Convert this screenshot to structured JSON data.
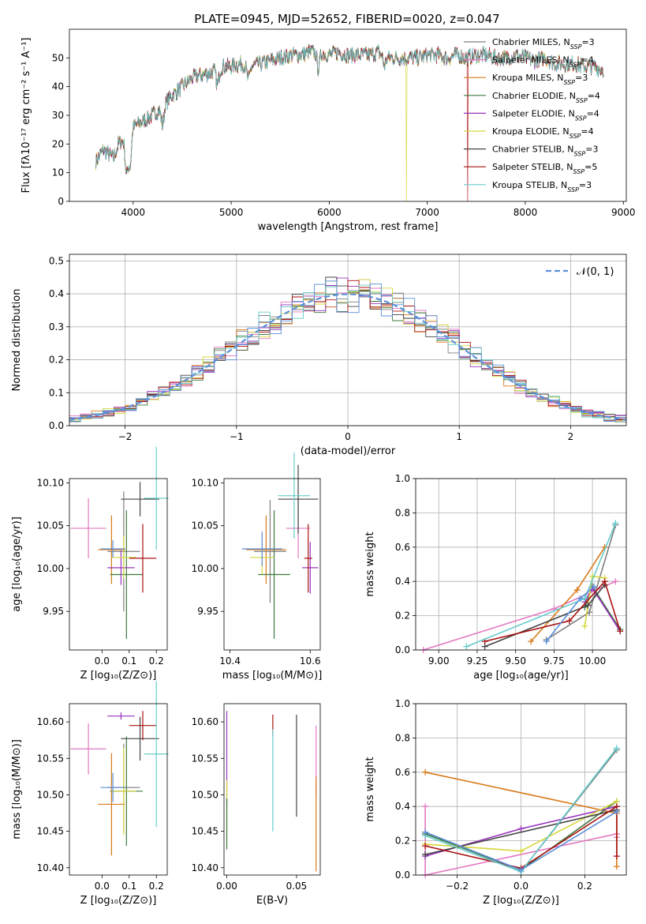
{
  "title": "PLATE=0945, MJD=52652, FIBERID=0020, z=0.047",
  "colors": [
    "#7f7f7f",
    "#e377c2",
    "#d97a1c",
    "#3d7a3d",
    "#9933bb",
    "#d6d63a",
    "#444444",
    "#aa1111",
    "#66cccc",
    "#5b8fd9"
  ],
  "chart_data": [
    {
      "type": "line",
      "id": "spectrum",
      "xlabel": "wavelength [Angstrom, rest frame]",
      "ylabel": "Flux [fλ10⁻¹⁷ erg cm⁻² s⁻¹ A⁻¹]",
      "xlim": [
        3350,
        9030
      ],
      "ylim": [
        0,
        60
      ],
      "xticks": [
        4000,
        5000,
        6000,
        7000,
        8000,
        9000
      ],
      "yticks": [
        0,
        10,
        20,
        30,
        40,
        50
      ],
      "legend_position": "top-right",
      "series": [
        {
          "name": "Chabrier MILES, N",
          "sub": "SSP",
          "suffix": "=3"
        },
        {
          "name": "Salpeter MILES, N",
          "sub": "SSP",
          "suffix": "=4"
        },
        {
          "name": "Kroupa MILES, N",
          "sub": "SSP",
          "suffix": "=3"
        },
        {
          "name": "Chabrier ELODIE, N",
          "sub": "SSP",
          "suffix": "=4"
        },
        {
          "name": "Salpeter ELODIE, N",
          "sub": "SSP",
          "suffix": "=4"
        },
        {
          "name": "Kroupa ELODIE, N",
          "sub": "SSP",
          "suffix": "=4"
        },
        {
          "name": "Chabrier STELIB, N",
          "sub": "SSP",
          "suffix": "=3"
        },
        {
          "name": "Salpeter STELIB, N",
          "sub": "SSP",
          "suffix": "=5"
        },
        {
          "name": "Kroupa STELIB, N",
          "sub": "SSP",
          "suffix": "=3"
        }
      ],
      "continuum": [
        [
          3620,
          14
        ],
        [
          3700,
          18
        ],
        [
          3800,
          15
        ],
        [
          3850,
          20
        ],
        [
          3920,
          22
        ],
        [
          4000,
          26
        ],
        [
          4100,
          28
        ],
        [
          4200,
          30
        ],
        [
          4300,
          33
        ],
        [
          4400,
          37
        ],
        [
          4500,
          40
        ],
        [
          4600,
          43
        ],
        [
          4700,
          44
        ],
        [
          4800,
          45
        ],
        [
          4900,
          47
        ],
        [
          5000,
          47
        ],
        [
          5100,
          48
        ],
        [
          5200,
          47
        ],
        [
          5300,
          48
        ],
        [
          5400,
          49
        ],
        [
          5500,
          50
        ],
        [
          5600,
          51
        ],
        [
          5700,
          51
        ],
        [
          5800,
          52
        ],
        [
          5900,
          52
        ],
        [
          6000,
          51
        ],
        [
          6100,
          52
        ],
        [
          6200,
          51
        ],
        [
          6300,
          51
        ],
        [
          6400,
          51
        ],
        [
          6500,
          52
        ],
        [
          6600,
          50
        ],
        [
          6700,
          50
        ],
        [
          6800,
          50
        ],
        [
          6900,
          50
        ],
        [
          7000,
          51
        ],
        [
          7100,
          51
        ],
        [
          7200,
          50
        ],
        [
          7300,
          51
        ],
        [
          7400,
          50
        ],
        [
          7500,
          51
        ],
        [
          7600,
          51
        ],
        [
          7700,
          50
        ],
        [
          7800,
          50
        ],
        [
          7900,
          51
        ],
        [
          8000,
          50
        ],
        [
          8100,
          49
        ],
        [
          8200,
          50
        ],
        [
          8300,
          48
        ],
        [
          8400,
          48
        ],
        [
          8500,
          48
        ],
        [
          8600,
          47
        ],
        [
          8700,
          47
        ],
        [
          8800,
          46
        ]
      ],
      "dips": [
        [
          3933,
          4
        ],
        [
          3968,
          8
        ],
        [
          4300,
          24
        ],
        [
          4861,
          38
        ],
        [
          5175,
          40
        ],
        [
          5890,
          44
        ],
        [
          6563,
          46
        ]
      ],
      "dropouts": [
        {
          "x": 6790,
          "series": 5
        },
        {
          "x": 7410,
          "series": 7
        }
      ]
    },
    {
      "type": "histogram",
      "id": "residuals",
      "xlabel": "(data-model)/error",
      "ylabel": "Normed distribution",
      "xlim": [
        -2.5,
        2.5
      ],
      "ylim": [
        0,
        0.52
      ],
      "xticks": [
        -2,
        -1,
        0,
        1,
        2
      ],
      "yticks": [
        0,
        0.1,
        0.2,
        0.3,
        0.4,
        0.5
      ],
      "bin_width": 0.1,
      "grid": true,
      "reference_curve": "𝒩(0, 1)",
      "legend_position": "top-right"
    },
    {
      "type": "scatter",
      "id": "age-vs-Z",
      "xlabel": "Z [log₁₀(Z/Z⊙)]",
      "ylabel": "age  [log₁₀(age/yr)]",
      "xlim": [
        -0.12,
        0.24
      ],
      "ylim": [
        9.905,
        10.105
      ],
      "xticks": [
        0.0,
        0.1,
        0.2
      ],
      "yticks": [
        9.95,
        10.0,
        10.05,
        10.1
      ],
      "points": [
        {
          "s": 0,
          "x": 0.08,
          "y": 10.02,
          "ex": 0.06,
          "ey": 0.07
        },
        {
          "s": 1,
          "x": -0.05,
          "y": 10.047,
          "ex": 0.065,
          "ey": 0.035
        },
        {
          "s": 2,
          "x": 0.035,
          "y": 10.022,
          "ex": 0.05,
          "ey": 0.04
        },
        {
          "s": 3,
          "x": 0.09,
          "y": 9.993,
          "ex": 0.06,
          "ey": 0.075
        },
        {
          "s": 4,
          "x": 0.07,
          "y": 10.001,
          "ex": 0.05,
          "ey": 0.02
        },
        {
          "s": 5,
          "x": 0.08,
          "y": 10.013,
          "ex": 0.045,
          "ey": 0.025
        },
        {
          "s": 6,
          "x": 0.14,
          "y": 10.081,
          "ex": 0.07,
          "ey": 0.02
        },
        {
          "s": 7,
          "x": 0.15,
          "y": 10.012,
          "ex": 0.05,
          "ey": 0.04
        },
        {
          "s": 8,
          "x": 0.2,
          "y": 10.082,
          "ex": 0.045,
          "ey": 0.06
        },
        {
          "s": 9,
          "x": 0.04,
          "y": 10.023,
          "ex": 0.045,
          "ey": 0.01
        }
      ]
    },
    {
      "type": "scatter",
      "id": "age-vs-mass",
      "xlabel": "mass [log₁₀(M/M⊙)]",
      "ylabel": "",
      "xlim": [
        10.385,
        10.625
      ],
      "ylim": [
        9.905,
        10.105
      ],
      "xticks": [
        10.4,
        10.6
      ],
      "yticks": [
        9.95,
        10.0,
        10.05,
        10.1
      ],
      "points": [
        {
          "s": 0,
          "x": 10.5,
          "y": 10.02,
          "ex": 0.04,
          "ey": 0.06
        },
        {
          "s": 1,
          "x": 10.57,
          "y": 10.047,
          "ex": 0.03,
          "ey": 0.035
        },
        {
          "s": 2,
          "x": 10.49,
          "y": 10.022,
          "ex": 0.05,
          "ey": 0.04
        },
        {
          "s": 3,
          "x": 10.51,
          "y": 9.993,
          "ex": 0.04,
          "ey": 0.075
        },
        {
          "s": 4,
          "x": 10.6,
          "y": 10.001,
          "ex": 0.02,
          "ey": 0.03
        },
        {
          "s": 5,
          "x": 10.48,
          "y": 10.013,
          "ex": 0.03,
          "ey": 0.02
        },
        {
          "s": 6,
          "x": 10.57,
          "y": 10.081,
          "ex": 0.05,
          "ey": 0.04
        },
        {
          "s": 7,
          "x": 10.595,
          "y": 10.012,
          "ex": 0.01,
          "ey": 0.04
        },
        {
          "s": 8,
          "x": 10.56,
          "y": 10.085,
          "ex": 0.04,
          "ey": 0.05
        },
        {
          "s": 9,
          "x": 10.48,
          "y": 10.023,
          "ex": 0.05,
          "ey": 0.02
        }
      ]
    },
    {
      "type": "line",
      "id": "massweight-vs-age",
      "xlabel": "age  [log₁₀(age/yr)]",
      "ylabel": "mass weight",
      "xlim": [
        8.85,
        10.22
      ],
      "ylim": [
        0,
        1
      ],
      "xticks": [
        9.0,
        9.25,
        9.5,
        9.75,
        10.0
      ],
      "yticks": [
        0.0,
        0.2,
        0.4,
        0.6,
        0.8,
        1.0
      ],
      "grid": true,
      "series": [
        {
          "s": 0,
          "x": [
            9.7,
            9.98,
            10.15
          ],
          "y": [
            0.06,
            0.22,
            0.73
          ]
        },
        {
          "s": 1,
          "x": [
            8.9,
            9.75,
            10.15
          ],
          "y": [
            0.0,
            0.24,
            0.4
          ]
        },
        {
          "s": 2,
          "x": [
            9.6,
            9.9,
            10.08
          ],
          "y": [
            0.05,
            0.35,
            0.6
          ]
        },
        {
          "s": 3,
          "x": [
            9.95,
            10.0,
            10.18
          ],
          "y": [
            0.25,
            0.37,
            0.12
          ]
        },
        {
          "s": 4,
          "x": [
            9.95,
            10.0,
            10.18
          ],
          "y": [
            0.28,
            0.36,
            0.11
          ]
        },
        {
          "s": 5,
          "x": [
            9.95,
            10.0,
            10.08
          ],
          "y": [
            0.14,
            0.43,
            0.42
          ]
        },
        {
          "s": 6,
          "x": [
            9.3,
            9.97,
            10.08
          ],
          "y": [
            0.02,
            0.26,
            0.38
          ]
        },
        {
          "s": 7,
          "x": [
            9.3,
            9.85,
            10.08,
            10.18
          ],
          "y": [
            0.05,
            0.17,
            0.4,
            0.11
          ]
        },
        {
          "s": 8,
          "x": [
            9.18,
            9.95,
            10.15
          ],
          "y": [
            0.02,
            0.3,
            0.74
          ]
        },
        {
          "s": 9,
          "x": [
            9.7,
            9.92,
            10.01
          ],
          "y": [
            0.05,
            0.3,
            0.37
          ]
        }
      ]
    },
    {
      "type": "scatter",
      "id": "mass-vs-Z",
      "xlabel": "Z [log₁₀(Z/Z⊙)]",
      "ylabel": "mass [log₁₀(M/M⊙)]",
      "xlim": [
        -0.12,
        0.24
      ],
      "ylim": [
        10.39,
        10.625
      ],
      "xticks": [
        0.0,
        0.1,
        0.2
      ],
      "yticks": [
        10.4,
        10.45,
        10.5,
        10.55,
        10.6
      ],
      "points": [
        {
          "s": 0,
          "x": 0.08,
          "y": 10.51,
          "ex": 0.06,
          "ey": 0.06
        },
        {
          "s": 1,
          "x": -0.05,
          "y": 10.563,
          "ex": 0.065,
          "ey": 0.035
        },
        {
          "s": 2,
          "x": 0.035,
          "y": 10.487,
          "ex": 0.05,
          "ey": 0.07
        },
        {
          "s": 3,
          "x": 0.09,
          "y": 10.505,
          "ex": 0.06,
          "ey": 0.075
        },
        {
          "s": 4,
          "x": 0.07,
          "y": 10.608,
          "ex": 0.05,
          "ey": 0.005
        },
        {
          "s": 5,
          "x": 0.08,
          "y": 10.505,
          "ex": 0.045,
          "ey": 0.06
        },
        {
          "s": 6,
          "x": 0.14,
          "y": 10.577,
          "ex": 0.07,
          "ey": 0.03
        },
        {
          "s": 7,
          "x": 0.15,
          "y": 10.595,
          "ex": 0.05,
          "ey": 0.02
        },
        {
          "s": 8,
          "x": 0.2,
          "y": 10.556,
          "ex": 0.045,
          "ey": 0.1
        },
        {
          "s": 9,
          "x": 0.04,
          "y": 10.51,
          "ex": 0.045,
          "ey": 0.02
        }
      ]
    },
    {
      "type": "errorbar",
      "id": "mass-vs-ebv",
      "xlabel": "E(B-V)",
      "ylabel": "",
      "xlim": [
        -0.002,
        0.067
      ],
      "ylim": [
        10.39,
        10.625
      ],
      "xticks": [
        0.0,
        0.05
      ],
      "yticks": [
        10.4,
        10.45,
        10.5,
        10.55,
        10.6
      ],
      "points": [
        {
          "s": 4,
          "x": 0.0,
          "y": 10.55,
          "ey": 0.065
        },
        {
          "s": 5,
          "x": 0.0,
          "y": 10.48,
          "ey": 0.04
        },
        {
          "s": 3,
          "x": 0.0,
          "y": 10.46,
          "ey": 0.035
        },
        {
          "s": 7,
          "x": 0.033,
          "y": 10.595,
          "ey": 0.015
        },
        {
          "s": 8,
          "x": 0.033,
          "y": 10.52,
          "ey": 0.07
        },
        {
          "s": 6,
          "x": 0.05,
          "y": 10.54,
          "ey": 0.07
        },
        {
          "s": 1,
          "x": 0.064,
          "y": 10.545,
          "ey": 0.05
        },
        {
          "s": 2,
          "x": 0.064,
          "y": 10.46,
          "ey": 0.065
        }
      ]
    },
    {
      "type": "line",
      "id": "massweight-vs-Z",
      "xlabel": "Z [log₁₀(Z/Z⊙)]",
      "ylabel": "mass weight",
      "xlim": [
        -0.33,
        0.33
      ],
      "ylim": [
        0,
        1
      ],
      "xticks": [
        -0.2,
        0.0,
        0.2
      ],
      "yticks": [
        0.0,
        0.2,
        0.4,
        0.6,
        0.8,
        1.0
      ],
      "grid": true,
      "series": [
        {
          "s": 0,
          "x": [
            -0.3,
            0.0,
            0.3
          ],
          "y": [
            0.25,
            0.02,
            0.73
          ]
        },
        {
          "s": 1,
          "x": [
            -0.3,
            -0.3,
            0.3,
            0.3
          ],
          "y": [
            0.4,
            0.0,
            0.24,
            0.22
          ]
        },
        {
          "s": 2,
          "x": [
            -0.3,
            0.3,
            0.3
          ],
          "y": [
            0.6,
            0.36,
            0.05
          ]
        },
        {
          "s": 3,
          "x": [
            -0.3,
            0.0,
            0.3
          ],
          "y": [
            0.24,
            0.03,
            0.43
          ]
        },
        {
          "s": 4,
          "x": [
            -0.3,
            0.0,
            0.3
          ],
          "y": [
            0.11,
            0.27,
            0.4
          ]
        },
        {
          "s": 5,
          "x": [
            -0.3,
            0.0,
            0.3
          ],
          "y": [
            0.18,
            0.14,
            0.43
          ]
        },
        {
          "s": 6,
          "x": [
            -0.3,
            0.3
          ],
          "y": [
            0.12,
            0.38
          ]
        },
        {
          "s": 7,
          "x": [
            -0.3,
            0.0,
            0.3,
            0.3
          ],
          "y": [
            0.17,
            0.04,
            0.4,
            0.11
          ]
        },
        {
          "s": 8,
          "x": [
            -0.3,
            0.0,
            0.3
          ],
          "y": [
            0.23,
            0.02,
            0.74
          ]
        },
        {
          "s": 9,
          "x": [
            -0.3,
            0.0,
            0.3
          ],
          "y": [
            0.25,
            0.03,
            0.37
          ]
        }
      ]
    }
  ]
}
